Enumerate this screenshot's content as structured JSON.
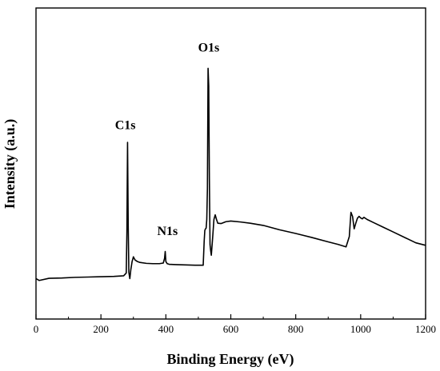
{
  "chart_data": {
    "type": "line",
    "title": "",
    "xlabel": "Binding Energy (eV)",
    "ylabel": "Intensity (a.u.)",
    "xlim": [
      0,
      1200
    ],
    "ylim": [
      0,
      100
    ],
    "x_ticks": [
      0,
      200,
      400,
      600,
      800,
      1000,
      1200
    ],
    "y_ticks_visible": false,
    "grid": false,
    "legend": "none",
    "line_color": "#000000",
    "series": [
      {
        "x": [
          0,
          10,
          40,
          80,
          120,
          160,
          200,
          240,
          270,
          278,
          280,
          282,
          284,
          286,
          289,
          292,
          296,
          300,
          305,
          312,
          320,
          340,
          360,
          380,
          392,
          396,
          398,
          400,
          404,
          410,
          430,
          460,
          490,
          515,
          518,
          520,
          522,
          524,
          526,
          528,
          530,
          532,
          534,
          536,
          538,
          540,
          544,
          548,
          552,
          556,
          560,
          570,
          585,
          600,
          630,
          660,
          700,
          750,
          800,
          850,
          900,
          930,
          955,
          965,
          970,
          975,
          980,
          985,
          990,
          995,
          1000,
          1005,
          1010,
          1020,
          1040,
          1070,
          1100,
          1140,
          1170,
          1200
        ],
        "y": [
          13.0,
          12.4,
          13.1,
          13.2,
          13.4,
          13.5,
          13.6,
          13.7,
          13.9,
          14.8,
          28.0,
          56.8,
          30.0,
          15.0,
          13.0,
          15.8,
          18.5,
          20.0,
          19.0,
          18.5,
          18.2,
          17.9,
          17.8,
          17.8,
          18.0,
          19.5,
          21.7,
          18.5,
          17.8,
          17.6,
          17.5,
          17.4,
          17.3,
          17.3,
          25.0,
          28.5,
          29.0,
          29.2,
          32.0,
          42.0,
          80.6,
          75.0,
          45.0,
          24.0,
          22.0,
          20.5,
          26.0,
          32.0,
          33.5,
          32.0,
          30.8,
          30.7,
          31.3,
          31.5,
          31.2,
          30.8,
          30.1,
          28.7,
          27.5,
          26.2,
          24.8,
          24.0,
          23.2,
          26.5,
          34.3,
          33.0,
          29.0,
          30.8,
          32.4,
          33.0,
          32.5,
          32.2,
          32.7,
          32.0,
          31.0,
          29.5,
          28.0,
          26.0,
          24.5,
          23.7
        ]
      }
    ],
    "annotations": [
      {
        "text": "C1s",
        "x": 275,
        "y": 61
      },
      {
        "text": "N1s",
        "x": 405,
        "y": 27
      },
      {
        "text": "O1s",
        "x": 532,
        "y": 86
      }
    ]
  }
}
